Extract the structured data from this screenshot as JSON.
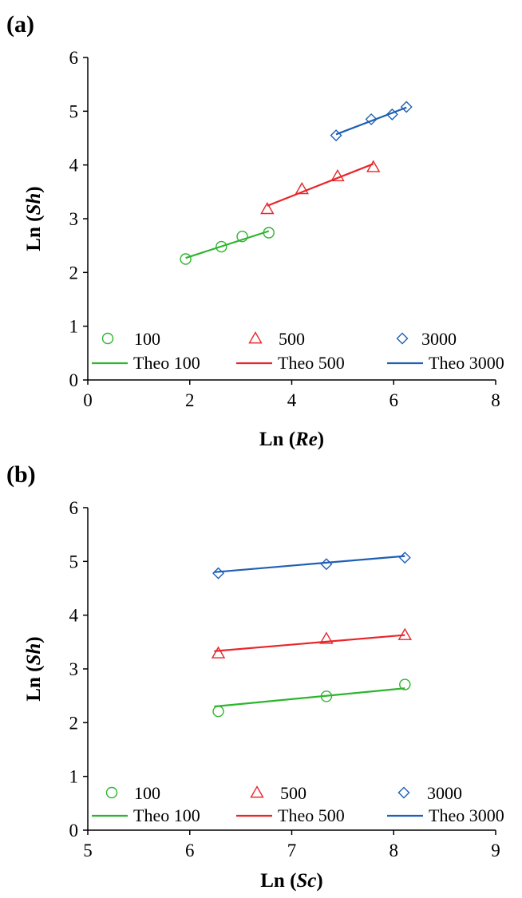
{
  "chart_data": [
    {
      "panel_label": "(a)",
      "type": "scatter",
      "xlabel_parts": [
        {
          "t": "Ln (",
          "i": false
        },
        {
          "t": "Re",
          "i": true
        },
        {
          "t": ")",
          "i": false
        }
      ],
      "ylabel_parts": [
        {
          "t": "Ln (",
          "i": false
        },
        {
          "t": "Sh",
          "i": true
        },
        {
          "t": ")",
          "i": false
        }
      ],
      "xlim": [
        0,
        8
      ],
      "ylim": [
        0,
        6
      ],
      "xticks": [
        0,
        2,
        4,
        6,
        8
      ],
      "yticks": [
        0,
        1,
        2,
        3,
        4,
        5,
        6
      ],
      "grid": false,
      "legend_position": "lower",
      "series": [
        {
          "name": "100",
          "marker": "circle",
          "color": "#2db52d",
          "x": [
            1.92,
            2.62,
            3.03,
            3.55
          ],
          "y": [
            2.25,
            2.48,
            2.67,
            2.74
          ]
        },
        {
          "name": "500",
          "marker": "triangle",
          "color": "#e8262a",
          "x": [
            3.52,
            4.2,
            4.9,
            5.6
          ],
          "y": [
            3.18,
            3.55,
            3.79,
            3.96
          ]
        },
        {
          "name": "3000",
          "marker": "diamond",
          "color": "#1f5fb4",
          "x": [
            4.87,
            5.56,
            5.97,
            6.25
          ],
          "y": [
            4.55,
            4.85,
            4.94,
            5.08
          ]
        }
      ],
      "lines": [
        {
          "name": "Theo 100",
          "color": "#2db52d",
          "x": [
            1.92,
            3.55
          ],
          "y": [
            2.27,
            2.77
          ]
        },
        {
          "name": "Theo 500",
          "color": "#e8262a",
          "x": [
            3.52,
            5.6
          ],
          "y": [
            3.24,
            4.02
          ]
        },
        {
          "name": "Theo 3000",
          "color": "#1f5fb4",
          "x": [
            4.87,
            6.25
          ],
          "y": [
            4.57,
            5.07
          ]
        }
      ]
    },
    {
      "panel_label": "(b)",
      "type": "scatter",
      "xlabel_parts": [
        {
          "t": "Ln (",
          "i": false
        },
        {
          "t": "Sc",
          "i": true
        },
        {
          "t": ")",
          "i": false
        }
      ],
      "ylabel_parts": [
        {
          "t": "Ln (",
          "i": false
        },
        {
          "t": "Sh",
          "i": true
        },
        {
          "t": ")",
          "i": false
        }
      ],
      "xlim": [
        5,
        9
      ],
      "ylim": [
        0,
        6
      ],
      "xticks": [
        5,
        6,
        7,
        8,
        9
      ],
      "yticks": [
        0,
        1,
        2,
        3,
        4,
        5,
        6
      ],
      "grid": false,
      "legend_position": "lower",
      "series": [
        {
          "name": "100",
          "marker": "circle",
          "color": "#2db52d",
          "x": [
            6.28,
            7.34,
            8.11
          ],
          "y": [
            2.21,
            2.49,
            2.71
          ]
        },
        {
          "name": "500",
          "marker": "triangle",
          "color": "#e8262a",
          "x": [
            6.28,
            7.34,
            8.11
          ],
          "y": [
            3.29,
            3.56,
            3.63
          ]
        },
        {
          "name": "3000",
          "marker": "diamond",
          "color": "#1f5fb4",
          "x": [
            6.28,
            7.34,
            8.11
          ],
          "y": [
            4.78,
            4.95,
            5.07
          ]
        }
      ],
      "lines": [
        {
          "name": "Theo 100",
          "color": "#2db52d",
          "x": [
            6.24,
            8.11
          ],
          "y": [
            2.3,
            2.64
          ]
        },
        {
          "name": "Theo 500",
          "color": "#e8262a",
          "x": [
            6.24,
            8.11
          ],
          "y": [
            3.33,
            3.63
          ]
        },
        {
          "name": "Theo 3000",
          "color": "#1f5fb4",
          "x": [
            6.24,
            8.11
          ],
          "y": [
            4.8,
            5.1
          ]
        }
      ]
    }
  ]
}
